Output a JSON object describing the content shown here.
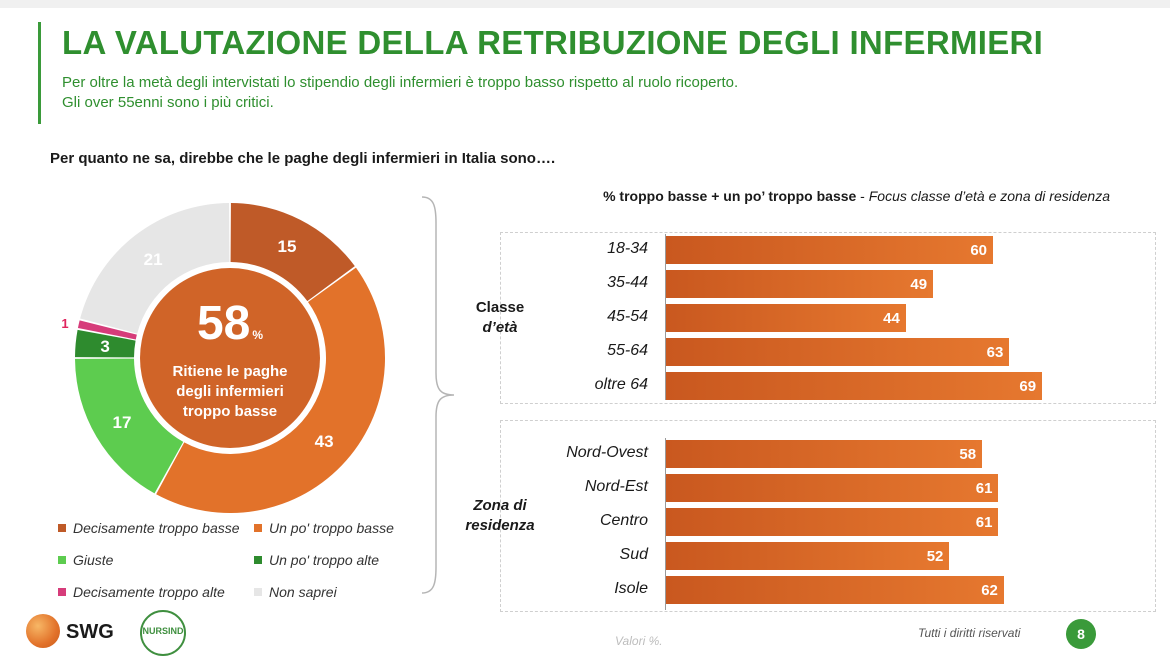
{
  "title": "LA VALUTAZIONE DELLA RETRIBUZIONE DEGLI INFERMIERI",
  "subtitle_lines": [
    "Per oltre la metà degli intervistati lo stipendio degli infermieri è troppo basso rispetto al ruolo ricoperto.",
    "Gli over 55enni sono i più critici."
  ],
  "question": "Per quanto ne sa, direbbe che le paghe degli infermieri in Italia sono….",
  "donut": {
    "center_value": "58",
    "center_unit": "%",
    "center_desc": "Ritiene le paghe degli infermieri troppo basse"
  },
  "bar_title": {
    "bold": "% troppo basse + un po’ troppo basse",
    "separator": " - ",
    "italic": "Focus classe d’età e zona di residenza"
  },
  "groups": {
    "age_label_line1": "Classe",
    "age_label_line2": "d’età",
    "zone_label_line1": "Zona di",
    "zone_label_line2": "residenza"
  },
  "footer": {
    "note": "Valori %.",
    "rights": "Tutti i diritti riservati",
    "page": "8",
    "logo_swg": "SWG",
    "logo_nursind": "NURSIND"
  },
  "colors": {
    "accent_green": "#2f8f2f",
    "bar_orange": "#e2722a"
  },
  "chart_data": [
    {
      "type": "pie",
      "variant": "donut",
      "categories": [
        "Decisamente troppo basse",
        "Un po' troppo basse",
        "Giuste",
        "Un po' troppo alte",
        "Decisamente troppo alte",
        "Non saprei"
      ],
      "values": [
        15,
        43,
        17,
        3,
        1,
        21
      ],
      "colors": [
        "#bf5a28",
        "#e2722a",
        "#5dcc4f",
        "#2e8b2e",
        "#d63c7a",
        "#e6e6e6"
      ],
      "label_colors": [
        "#ffffff",
        "#ffffff",
        "#ffffff",
        "#ffffff",
        "#e0245e",
        "#ffffff"
      ],
      "legend_position": "bottom"
    },
    {
      "type": "bar",
      "orientation": "horizontal",
      "categories": [
        "18-34",
        "35-44",
        "45-54",
        "55-64",
        "oltre 64",
        "Nord-Ovest",
        "Nord-Est",
        "Centro",
        "Sud",
        "Isole"
      ],
      "values": [
        60,
        49,
        44,
        63,
        69,
        58,
        61,
        61,
        52,
        62
      ],
      "xlim": [
        0,
        100
      ]
    }
  ]
}
